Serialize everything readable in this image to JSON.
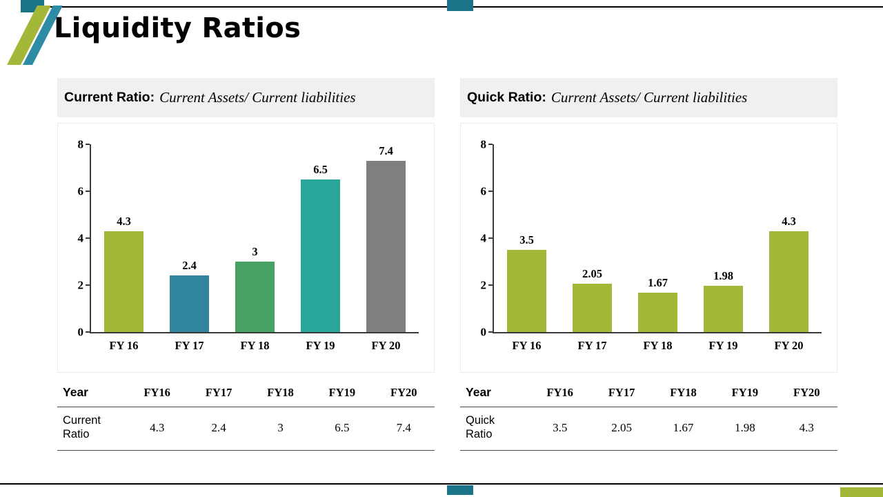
{
  "slide": {
    "title": "Liquidity Ratios"
  },
  "colors": {
    "olive": "#a3b838",
    "teal_dark": "#1a7488",
    "teal_stripe": "#2d8ba3",
    "bar_blue_teal": "#31859c",
    "bar_green": "#47a164",
    "bar_cyan_teal": "#27a699",
    "bar_gray": "#7f7f7f",
    "line_black": "#000000",
    "header_bg": "#f0f0f0"
  },
  "panels": [
    {
      "id": "current-ratio",
      "header_bold": "Current Ratio:",
      "header_italic": "Current Assets/ Current liabilities",
      "table": {
        "row_header": "Year",
        "col_headers": [
          "FY16",
          "FY17",
          "FY18",
          "FY19",
          "FY20"
        ],
        "row_label": "Current Ratio",
        "values": [
          "4.3",
          "2.4",
          "3",
          "6.5",
          "7.4"
        ]
      }
    },
    {
      "id": "quick-ratio",
      "header_bold": "Quick Ratio:",
      "header_italic": "Current Assets/ Current liabilities",
      "table": {
        "row_header": "Year",
        "col_headers": [
          "FY16",
          "FY17",
          "FY18",
          "FY19",
          "FY20"
        ],
        "row_label": "Quick Ratio",
        "values": [
          "3.5",
          "2.05",
          "1.67",
          "1.98",
          "4.3"
        ]
      }
    }
  ],
  "chart_data": [
    {
      "type": "bar",
      "title": "Current Ratio",
      "categories": [
        "FY 16",
        "FY 17",
        "FY 18",
        "FY 19",
        "FY 20"
      ],
      "values": [
        4.3,
        2.4,
        3,
        6.5,
        7.4
      ],
      "value_labels": [
        "4.3",
        "2.4",
        "3",
        "6.5",
        "7.4"
      ],
      "xlabel": "",
      "ylabel": "",
      "ylim": [
        0,
        8
      ],
      "ytick_step": 2,
      "grid": false,
      "legend": "none",
      "bar_colors": [
        "#a3b838",
        "#31859c",
        "#47a164",
        "#27a699",
        "#7f7f7f"
      ]
    },
    {
      "type": "bar",
      "title": "Quick Ratio",
      "categories": [
        "FY 16",
        "FY 17",
        "FY 18",
        "FY 19",
        "FY 20"
      ],
      "values": [
        3.5,
        2.05,
        1.67,
        1.98,
        4.3
      ],
      "value_labels": [
        "3.5",
        "2.05",
        "1.67",
        "1.98",
        "4.3"
      ],
      "xlabel": "",
      "ylabel": "",
      "ylim": [
        0,
        8
      ],
      "ytick_step": 2,
      "grid": false,
      "legend": "none",
      "bar_colors": [
        "#a3b838",
        "#a3b838",
        "#a3b838",
        "#a3b838",
        "#a3b838"
      ]
    }
  ]
}
